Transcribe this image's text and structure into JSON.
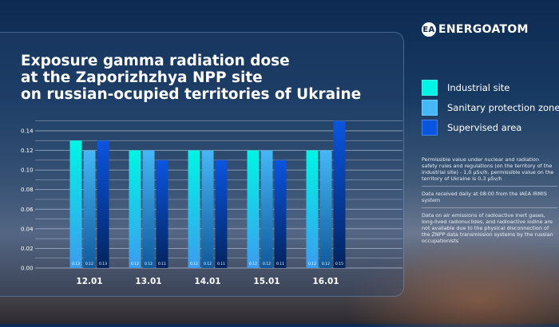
{
  "brand": {
    "name": "ENERGOATOM",
    "mark": "EA"
  },
  "title_lines": [
    "Exposure gamma radiation dose",
    "at the Zaporizhzhya NPP site",
    "on russian-ocupied territories of Ukraine"
  ],
  "notes": [
    [
      "Permissible value under nuclear and radiation",
      "safety rules and regulations (on the territory of the",
      "industrial site) - 1,0 µSv/h, permissible value on the",
      "territory of Ukraine is 0,3 µSv/h"
    ],
    [
      "Data received daily at 08:00 from the IAEA IRMIS",
      "system"
    ],
    [
      "Data on air emissions of radioactive inert gases,",
      "long-lived radionuclides, and radioactive iodine are",
      "not available due to the physical disconnection of",
      "the ZNPP data transmission systems by the russian",
      "occupationists"
    ]
  ],
  "chart_data": {
    "type": "bar",
    "categories": [
      "12.01",
      "13.01",
      "14.01",
      "15.01",
      "16.01"
    ],
    "series": [
      {
        "name": "Industrial site",
        "values": [
          0.13,
          0.12,
          0.12,
          0.12,
          0.12
        ],
        "color": "#00f5e4"
      },
      {
        "name": "Sanitary protection zone",
        "values": [
          0.12,
          0.12,
          0.12,
          0.12,
          0.12
        ],
        "color": "#45b8f5"
      },
      {
        "name": "Supervised area",
        "values": [
          0.13,
          0.11,
          0.11,
          0.11,
          0.15
        ],
        "color": "#0a55e0"
      }
    ],
    "value_labels": [
      [
        "0.13",
        "0.12",
        "0.12",
        "0.12",
        "0.12"
      ],
      [
        "0.12",
        "0.12",
        "0.12",
        "0.12",
        "0.12"
      ],
      [
        "0.13",
        "0.11",
        "0.11",
        "0.11",
        "0.15"
      ]
    ],
    "yticks": [
      "0.00",
      "0.02",
      "0.04",
      "0.06",
      "0.08",
      "0.10",
      "0.12",
      "0.14"
    ],
    "ylim": [
      0,
      0.15
    ],
    "grid": true,
    "legend": "right"
  }
}
